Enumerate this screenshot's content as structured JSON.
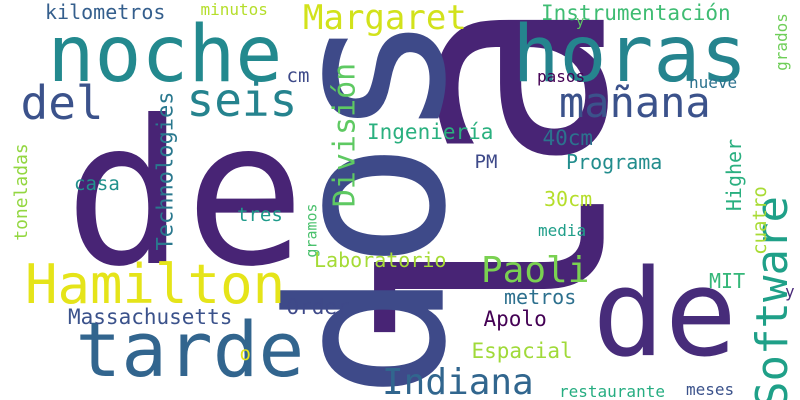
{
  "words": [
    {
      "text": "la",
      "weight": 100,
      "color": "#482475",
      "vertical": true
    },
    {
      "text": "de",
      "weight": 95,
      "color": "#482475",
      "vertical": false
    },
    {
      "text": "dos",
      "weight": 75,
      "color": "#3e4a89",
      "vertical": true
    },
    {
      "text": "de",
      "weight": 62,
      "color": "#472c7a",
      "vertical": false
    },
    {
      "text": "noche",
      "weight": 42,
      "color": "#23898e",
      "vertical": false
    },
    {
      "text": "horas",
      "weight": 42,
      "color": "#25848e",
      "vertical": false
    },
    {
      "text": "tarde",
      "weight": 40,
      "color": "#32658e",
      "vertical": false
    },
    {
      "text": "Hamilton",
      "weight": 27,
      "color": "#e5e419",
      "vertical": false
    },
    {
      "text": "seis",
      "weight": 22,
      "color": "#25838e",
      "vertical": false
    },
    {
      "text": "del",
      "weight": 22,
      "color": "#3b528b",
      "vertical": false
    },
    {
      "text": "mañana",
      "weight": 20,
      "color": "#3b528b",
      "vertical": false
    },
    {
      "text": "Software",
      "weight": 23,
      "color": "#1fa088",
      "vertical": true
    },
    {
      "text": "Margaret",
      "weight": 17,
      "color": "#d2e21b",
      "vertical": false
    },
    {
      "text": "Indiana",
      "weight": 18,
      "color": "#31668e",
      "vertical": false
    },
    {
      "text": "Paoli",
      "weight": 18,
      "color": "#7ad151",
      "vertical": false
    },
    {
      "text": "División",
      "weight": 14,
      "color": "#5ec962",
      "vertical": true
    },
    {
      "text": "Massachusetts",
      "weight": 12,
      "color": "#3b528b",
      "vertical": false
    },
    {
      "text": "Technologies",
      "weight": 12,
      "color": "#2a788e",
      "vertical": true
    },
    {
      "text": "Instrumentación",
      "weight": 11,
      "color": "#3fbc73",
      "vertical": false
    },
    {
      "text": "kilometros",
      "weight": 11,
      "color": "#355f8d",
      "vertical": false
    },
    {
      "text": "Ingeniería",
      "weight": 11,
      "color": "#2ab07f",
      "vertical": false
    },
    {
      "text": "Programa",
      "weight": 11,
      "color": "#228d8d",
      "vertical": false
    },
    {
      "text": "Laboratorio",
      "weight": 10,
      "color": "#a5db36",
      "vertical": false
    },
    {
      "text": "Espacial",
      "weight": 11,
      "color": "#a0da39",
      "vertical": false
    },
    {
      "text": "Order",
      "weight": 11,
      "color": "#3e4989",
      "vertical": false
    },
    {
      "text": "Apolo",
      "weight": 11,
      "color": "#440154",
      "vertical": false
    },
    {
      "text": "metros",
      "weight": 10,
      "color": "#2d708e",
      "vertical": false
    },
    {
      "text": "40cm",
      "weight": 11,
      "color": "#2c728e",
      "vertical": false
    },
    {
      "text": "30cm",
      "weight": 11,
      "color": "#b5de2b",
      "vertical": false
    },
    {
      "text": "Higher",
      "weight": 10,
      "color": "#29af7f",
      "vertical": true
    },
    {
      "text": "cuatro",
      "weight": 9,
      "color": "#a8db34",
      "vertical": true
    },
    {
      "text": "toneladas",
      "weight": 9,
      "color": "#93d741",
      "vertical": true
    },
    {
      "text": "casa",
      "weight": 9,
      "color": "#21918c",
      "vertical": false
    },
    {
      "text": "tres",
      "weight": 10,
      "color": "#1e9b8a",
      "vertical": false
    },
    {
      "text": "MIT",
      "weight": 10,
      "color": "#35b779",
      "vertical": false
    },
    {
      "text": "PM",
      "weight": 9,
      "color": "#3e4989",
      "vertical": false
    },
    {
      "text": "cm",
      "weight": 9,
      "color": "#3e4a89",
      "vertical": false
    },
    {
      "text": "pasos",
      "weight": 8,
      "color": "#440154",
      "vertical": false
    },
    {
      "text": "nueve",
      "weight": 8,
      "color": "#2c728e",
      "vertical": false
    },
    {
      "text": "media",
      "weight": 8,
      "color": "#1f9e89",
      "vertical": false
    },
    {
      "text": "minutos",
      "weight": 8,
      "color": "#b5de2b",
      "vertical": false
    },
    {
      "text": "grados",
      "weight": 8,
      "color": "#6ece58",
      "vertical": true
    },
    {
      "text": "gramos",
      "weight": 7,
      "color": "#4ac16d",
      "vertical": true
    },
    {
      "text": "restaurante",
      "weight": 8,
      "color": "#26ad81",
      "vertical": false
    },
    {
      "text": "meses",
      "weight": 8,
      "color": "#3b528b",
      "vertical": false
    },
    {
      "text": "y",
      "weight": 8,
      "color": "#482878",
      "vertical": false
    },
    {
      "text": "o",
      "weight": 9,
      "color": "#e5e419",
      "vertical": false
    },
    {
      "text": "y",
      "weight": 7,
      "color": "#5ec962",
      "vertical": false
    }
  ]
}
